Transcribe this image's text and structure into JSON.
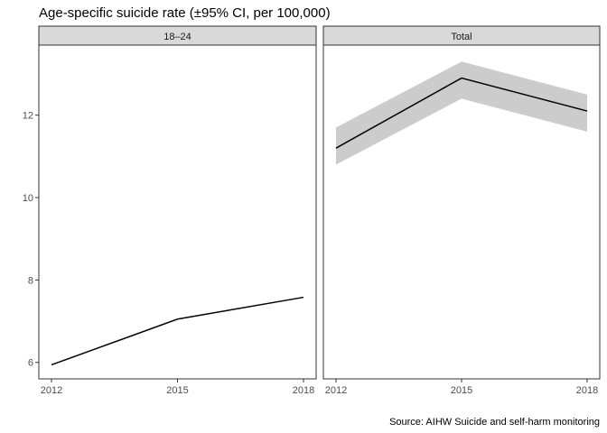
{
  "chart_data": {
    "type": "line",
    "title": "Age-specific suicide rate (±95% CI, per 100,000)",
    "caption": "Source: AIHW Suicide and self-harm monitoring",
    "xlabel": "",
    "ylabel": "",
    "x": [
      2012,
      2015,
      2018
    ],
    "x_ticks": [
      "2012",
      "2015",
      "2018"
    ],
    "y_ticks": [
      "6",
      "8",
      "10",
      "12"
    ],
    "ylim": [
      5.6,
      13.7
    ],
    "grid": false,
    "colors": {
      "line": "#000000",
      "ribbon": "#cccccc",
      "strip": "#d9d9d9",
      "panel_border": "#333333"
    },
    "panels": [
      {
        "label": "18–24",
        "values": [
          5.94,
          7.05,
          7.58
        ],
        "ci_lower": null,
        "ci_upper": null
      },
      {
        "label": "Total",
        "values": [
          11.2,
          12.9,
          12.1
        ],
        "ci_lower": [
          10.8,
          12.4,
          11.6
        ],
        "ci_upper": [
          11.7,
          13.3,
          12.5
        ]
      }
    ]
  }
}
